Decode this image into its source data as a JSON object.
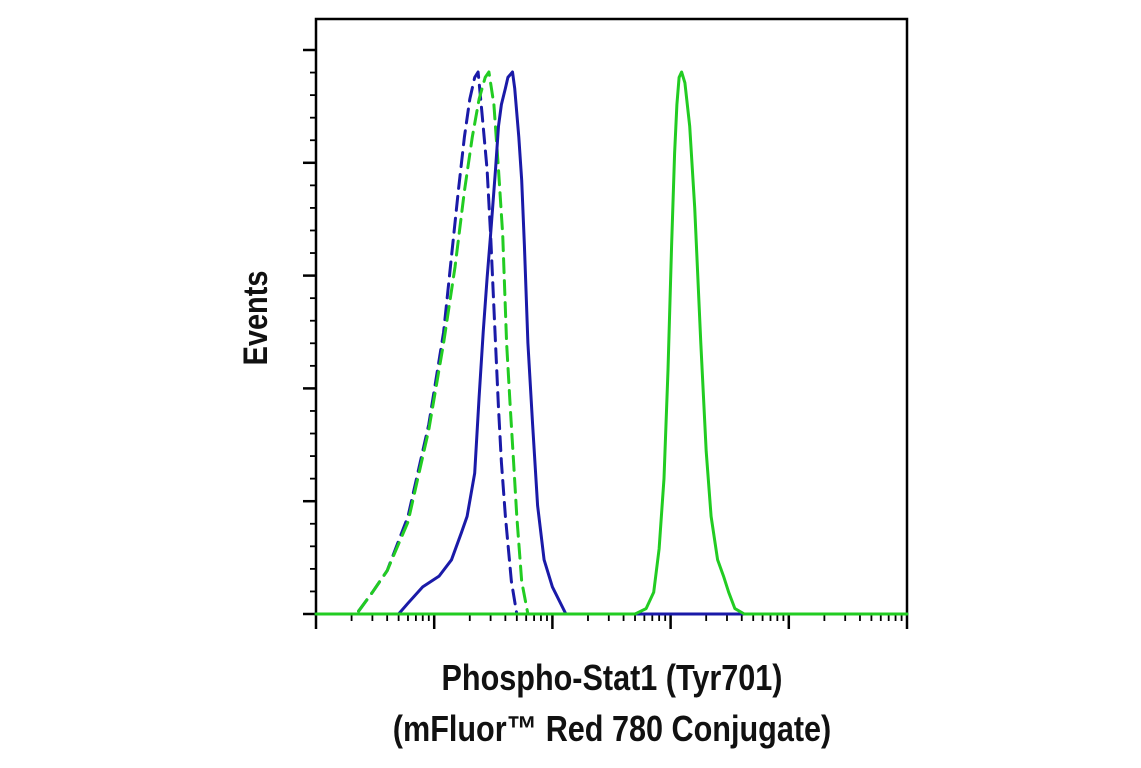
{
  "chart_data": {
    "type": "line",
    "title": "",
    "xlabel": [
      "Phospho-Stat1 (Tyr701)",
      "(mFluor™ Red 780 Conjugate)"
    ],
    "ylabel": "Events",
    "x_scale": "log",
    "xlim": [
      1,
      100000
    ],
    "ylim": [
      0,
      100
    ],
    "grid": false,
    "legend": "none",
    "series": [
      {
        "color": "#1a1aa8",
        "style": "dashed",
        "points": [
          [
            1,
            0
          ],
          [
            2.2,
            0
          ],
          [
            3,
            4
          ],
          [
            4,
            8
          ],
          [
            6,
            18
          ],
          [
            9,
            35
          ],
          [
            12,
            52
          ],
          [
            14,
            66
          ],
          [
            16,
            78
          ],
          [
            18,
            88
          ],
          [
            20,
            95
          ],
          [
            22,
            99
          ],
          [
            23.5,
            100
          ],
          [
            25,
            94
          ],
          [
            28,
            82
          ],
          [
            30,
            70
          ],
          [
            33,
            50
          ],
          [
            35,
            38
          ],
          [
            37,
            28
          ],
          [
            40,
            18
          ],
          [
            45,
            6
          ],
          [
            50,
            0
          ],
          [
            100000,
            0
          ]
        ]
      },
      {
        "color": "#22cc22",
        "style": "dashed",
        "points": [
          [
            1,
            0
          ],
          [
            2.2,
            0
          ],
          [
            3,
            4
          ],
          [
            4,
            8
          ],
          [
            6,
            17
          ],
          [
            9,
            34
          ],
          [
            12,
            50
          ],
          [
            15,
            64
          ],
          [
            18,
            78
          ],
          [
            21,
            88
          ],
          [
            24,
            95
          ],
          [
            27,
            99
          ],
          [
            29,
            100
          ],
          [
            32,
            94
          ],
          [
            35,
            82
          ],
          [
            38,
            70
          ],
          [
            41,
            50
          ],
          [
            44,
            38
          ],
          [
            47,
            28
          ],
          [
            50,
            18
          ],
          [
            55,
            6
          ],
          [
            62,
            0
          ],
          [
            100000,
            0
          ]
        ]
      },
      {
        "color": "#1a1aa8",
        "style": "solid",
        "points": [
          [
            1,
            0
          ],
          [
            5,
            0
          ],
          [
            6,
            2
          ],
          [
            8,
            5
          ],
          [
            11,
            7
          ],
          [
            14,
            10
          ],
          [
            17,
            15
          ],
          [
            19,
            18
          ],
          [
            22,
            26
          ],
          [
            24,
            40
          ],
          [
            26,
            52
          ],
          [
            28,
            62
          ],
          [
            30,
            70
          ],
          [
            33,
            82
          ],
          [
            35,
            90
          ],
          [
            37,
            94
          ],
          [
            40,
            97
          ],
          [
            42,
            99
          ],
          [
            46,
            100
          ],
          [
            48,
            97
          ],
          [
            52,
            88
          ],
          [
            55,
            80
          ],
          [
            58,
            68
          ],
          [
            62,
            50
          ],
          [
            68,
            35
          ],
          [
            75,
            20
          ],
          [
            85,
            10
          ],
          [
            100,
            5
          ],
          [
            130,
            0
          ],
          [
            100000,
            0
          ]
        ]
      },
      {
        "color": "#22cc22",
        "style": "solid",
        "points": [
          [
            1,
            0
          ],
          [
            500,
            0
          ],
          [
            620,
            1
          ],
          [
            720,
            4
          ],
          [
            800,
            12
          ],
          [
            880,
            25
          ],
          [
            950,
            45
          ],
          [
            1020,
            68
          ],
          [
            1080,
            85
          ],
          [
            1130,
            94
          ],
          [
            1180,
            99
          ],
          [
            1240,
            100
          ],
          [
            1320,
            98
          ],
          [
            1450,
            90
          ],
          [
            1600,
            75
          ],
          [
            1800,
            50
          ],
          [
            2000,
            30
          ],
          [
            2200,
            18
          ],
          [
            2500,
            10
          ],
          [
            2800,
            7
          ],
          [
            3100,
            4
          ],
          [
            3500,
            1
          ],
          [
            4200,
            0
          ],
          [
            100000,
            0
          ]
        ]
      }
    ]
  }
}
